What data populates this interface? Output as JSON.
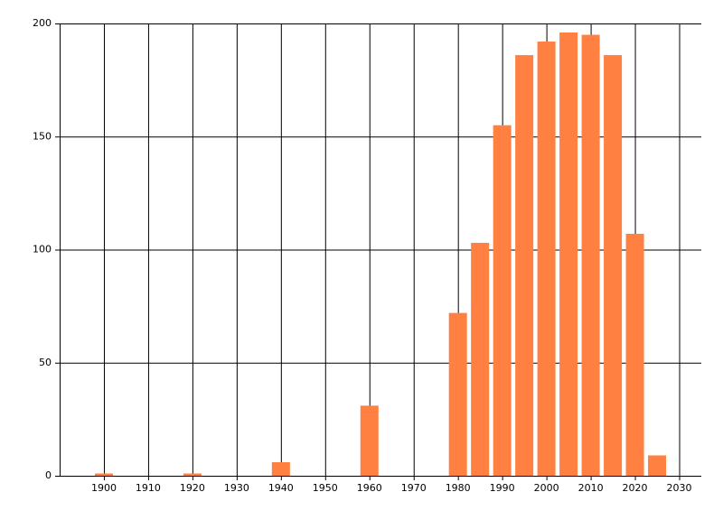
{
  "chart_data": {
    "type": "bar",
    "x": [
      1900,
      1920,
      1940,
      1960,
      1980,
      1985,
      1990,
      1995,
      2000,
      2005,
      2010,
      2015,
      2020,
      2025
    ],
    "values": [
      1,
      1,
      6,
      31,
      72,
      103,
      155,
      186,
      192,
      196,
      195,
      186,
      107,
      9
    ],
    "color": "#ff8040",
    "xlim": [
      1890,
      2035
    ],
    "xticks": [
      1900,
      1910,
      1920,
      1930,
      1940,
      1950,
      1960,
      1970,
      1980,
      1990,
      2000,
      2010,
      2020,
      2030
    ],
    "ylim": [
      0,
      200
    ],
    "yticks": [
      0,
      50,
      100,
      150,
      200
    ],
    "grid": true
  }
}
